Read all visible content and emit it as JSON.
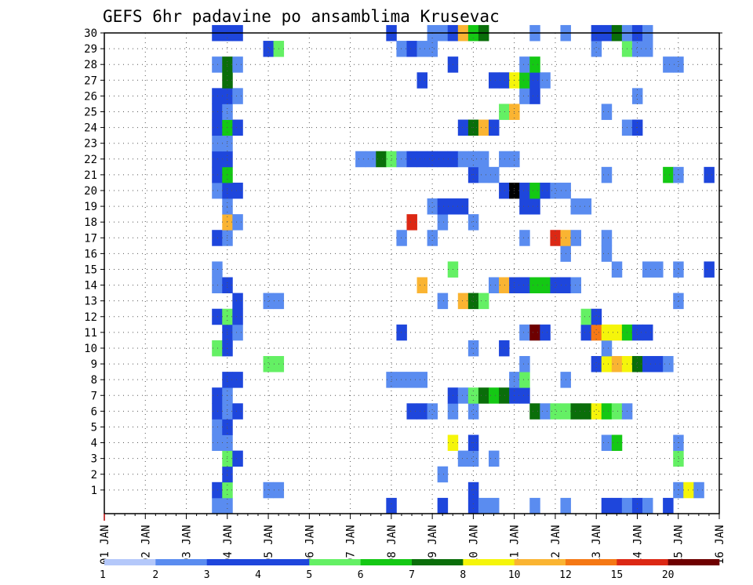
{
  "chart_data": {
    "type": "heatmap",
    "title": "GEFS 6hr padavine po ansamblima Krusevac",
    "xlabel": "",
    "ylabel": "",
    "grid": true,
    "legend_position": "bottom",
    "x_tick_labels": [
      "01 JAN",
      "02 JAN",
      "03 JAN",
      "04 JAN",
      "05 JAN",
      "06 JAN",
      "07 JAN",
      "08 JAN",
      "09 JAN",
      "10 JAN",
      "11 JAN",
      "12 JAN",
      "13 JAN",
      "14 JAN",
      "15 JAN",
      "16 JAN"
    ],
    "y_tick_labels": [
      "1",
      "2",
      "3",
      "4",
      "5",
      "6",
      "7",
      "8",
      "9",
      "10",
      "11",
      "12",
      "13",
      "14",
      "15",
      "16",
      "17",
      "18",
      "19",
      "20",
      "21",
      "22",
      "23",
      "24",
      "25",
      "26",
      "27",
      "28",
      "29",
      "30"
    ],
    "x_range_days": [
      1,
      16
    ],
    "y_range_members": [
      0,
      30
    ],
    "steps_per_day": 4,
    "legend": {
      "labels": [
        "1",
        "2",
        "3",
        "4",
        "5",
        "6",
        "7",
        "8",
        "10",
        "12",
        "15",
        "20"
      ],
      "colors": [
        "#b4c8fa",
        "#5a8cf0",
        "#1e46dc",
        "#1e46dc",
        "#64f064",
        "#14c814",
        "#0a6e0a",
        "#f5f50a",
        "#fab432",
        "#f57814",
        "#dc2814",
        "#6e0000"
      ]
    },
    "colors": {
      "background": "#ffffff",
      "axis": "#000000",
      "grid": "#555555",
      "tick_minor": "#b40000"
    },
    "cells": [
      [
        0,
        "3.75",
        1
      ],
      [
        0,
        "4.0",
        1
      ],
      [
        0,
        "8.0",
        2
      ],
      [
        0,
        "9.25",
        2
      ],
      [
        0,
        "10.0",
        2
      ],
      [
        0,
        "10.25",
        1
      ],
      [
        0,
        "10.5",
        1
      ],
      [
        0,
        "11.5",
        1
      ],
      [
        0,
        "12.25",
        1
      ],
      [
        0,
        "13.25",
        2
      ],
      [
        0,
        "13.5",
        3
      ],
      [
        0,
        "13.75",
        1
      ],
      [
        0,
        "14.0",
        2
      ],
      [
        0,
        "14.25",
        1
      ],
      [
        0,
        "14.75",
        2
      ],
      [
        1,
        "3.75",
        2
      ],
      [
        1,
        "4.0",
        4
      ],
      [
        1,
        "5.0",
        1
      ],
      [
        1,
        "5.25",
        1
      ],
      [
        1,
        "10.0",
        2
      ],
      [
        1,
        "15.0",
        1
      ],
      [
        1,
        "15.25",
        7
      ],
      [
        1,
        "15.5",
        1
      ],
      [
        2,
        "4.0",
        2
      ],
      [
        2,
        "9.25",
        1
      ],
      [
        3,
        "4.0",
        4
      ],
      [
        3,
        "4.25",
        2
      ],
      [
        3,
        "9.75",
        1
      ],
      [
        3,
        "10.0",
        1
      ],
      [
        3,
        "10.5",
        1
      ],
      [
        3,
        "15.0",
        4
      ],
      [
        4,
        "3.75",
        1
      ],
      [
        4,
        "4.0",
        1
      ],
      [
        4,
        "9.5",
        7
      ],
      [
        4,
        "10.0",
        3
      ],
      [
        4,
        "13.25",
        1
      ],
      [
        4,
        "13.5",
        5
      ],
      [
        4,
        "15.0",
        1
      ],
      [
        5,
        "3.75",
        1
      ],
      [
        5,
        "4.0",
        2
      ],
      [
        6,
        "3.75",
        2
      ],
      [
        6,
        "4.0",
        1
      ],
      [
        6,
        "4.25",
        2
      ],
      [
        6,
        "8.5",
        3
      ],
      [
        6,
        "8.75",
        3
      ],
      [
        6,
        "9.0",
        1
      ],
      [
        6,
        "9.5",
        1
      ],
      [
        6,
        "10.0",
        1
      ],
      [
        6,
        "11.5",
        6
      ],
      [
        6,
        "11.75",
        1
      ],
      [
        6,
        "12.0",
        4
      ],
      [
        6,
        "12.25",
        4
      ],
      [
        6,
        "12.5",
        6
      ],
      [
        6,
        "12.75",
        6
      ],
      [
        6,
        "13.0",
        7
      ],
      [
        6,
        "13.25",
        5
      ],
      [
        6,
        "13.5",
        4
      ],
      [
        6,
        "13.75",
        1
      ],
      [
        7,
        "3.75",
        2
      ],
      [
        7,
        "4.0",
        1
      ],
      [
        7,
        "9.5",
        2
      ],
      [
        7,
        "9.75",
        1
      ],
      [
        7,
        "10.0",
        4
      ],
      [
        7,
        "10.25",
        6
      ],
      [
        7,
        "10.5",
        5
      ],
      [
        7,
        "10.75",
        6
      ],
      [
        7,
        "11.0",
        3
      ],
      [
        7,
        "11.25",
        3
      ],
      [
        8,
        "4.0",
        3
      ],
      [
        8,
        "4.25",
        2
      ],
      [
        8,
        "8.0",
        1
      ],
      [
        8,
        "8.25",
        1
      ],
      [
        8,
        "8.5",
        1
      ],
      [
        8,
        "8.75",
        1
      ],
      [
        8,
        "11.0",
        1
      ],
      [
        8,
        "11.25",
        4
      ],
      [
        8,
        "12.25",
        1
      ],
      [
        9,
        "5.0",
        4
      ],
      [
        9,
        "5.25",
        4
      ],
      [
        9,
        "11.25",
        1
      ],
      [
        9,
        "13.0",
        3
      ],
      [
        9,
        "13.25",
        7
      ],
      [
        9,
        "13.5",
        8
      ],
      [
        9,
        "13.75",
        7
      ],
      [
        9,
        "14.0",
        6
      ],
      [
        9,
        "14.25",
        2
      ],
      [
        9,
        "14.5",
        2
      ],
      [
        9,
        "14.75",
        1
      ],
      [
        10,
        "3.75",
        4
      ],
      [
        10,
        "4.0",
        3
      ],
      [
        10,
        "10.0",
        1
      ],
      [
        10,
        "10.75",
        2
      ],
      [
        10,
        "13.25",
        1
      ],
      [
        11,
        "4.0",
        3
      ],
      [
        11,
        "4.25",
        1
      ],
      [
        11,
        "8.25",
        3
      ],
      [
        11,
        "11.25",
        1
      ],
      [
        11,
        "11.5",
        11
      ],
      [
        11,
        "11.75",
        3
      ],
      [
        11,
        "12.75",
        2
      ],
      [
        11,
        "13.0",
        9
      ],
      [
        11,
        "13.25",
        7
      ],
      [
        11,
        "13.5",
        7
      ],
      [
        11,
        "13.75",
        5
      ],
      [
        11,
        "14.0",
        3
      ],
      [
        11,
        "14.25",
        2
      ],
      [
        12,
        "3.75",
        2
      ],
      [
        12,
        "4.0",
        4
      ],
      [
        12,
        "4.25",
        2
      ],
      [
        12,
        "12.75",
        4
      ],
      [
        12,
        "13.0",
        2
      ],
      [
        13,
        "4.25",
        3
      ],
      [
        13,
        "5.0",
        1
      ],
      [
        13,
        "5.25",
        1
      ],
      [
        13,
        "9.25",
        1
      ],
      [
        13,
        "9.75",
        8
      ],
      [
        13,
        "10.0",
        6
      ],
      [
        13,
        "10.25",
        4
      ],
      [
        13,
        "15.0",
        1
      ],
      [
        14,
        "3.75",
        1
      ],
      [
        14,
        "4.0",
        3
      ],
      [
        14,
        "8.75",
        8
      ],
      [
        14,
        "10.5",
        1
      ],
      [
        14,
        "10.75",
        8
      ],
      [
        14,
        "11.0",
        3
      ],
      [
        14,
        "11.25",
        2
      ],
      [
        14,
        "11.5",
        5
      ],
      [
        14,
        "11.75",
        5
      ],
      [
        14,
        "12.0",
        2
      ],
      [
        14,
        "12.25",
        3
      ],
      [
        14,
        "12.5",
        1
      ],
      [
        15,
        "3.75",
        1
      ],
      [
        15,
        "9.5",
        4
      ],
      [
        15,
        "13.5",
        1
      ],
      [
        15,
        "14.25",
        1
      ],
      [
        15,
        "14.5",
        1
      ],
      [
        15,
        "15.0",
        1
      ],
      [
        15,
        "15.75",
        3
      ],
      [
        16,
        "12.25",
        1
      ],
      [
        16,
        "13.25",
        1
      ],
      [
        17,
        "3.75",
        2
      ],
      [
        17,
        "4.0",
        1
      ],
      [
        17,
        "8.25",
        1
      ],
      [
        17,
        "9.0",
        1
      ],
      [
        17,
        "11.25",
        1
      ],
      [
        17,
        "12.0",
        10
      ],
      [
        17,
        "12.25",
        8
      ],
      [
        17,
        "12.5",
        1
      ],
      [
        17,
        "13.25",
        1
      ],
      [
        18,
        "4.0",
        8
      ],
      [
        18,
        "4.25",
        1
      ],
      [
        18,
        "8.5",
        10
      ],
      [
        18,
        "9.25",
        1
      ],
      [
        18,
        "10.0",
        1
      ],
      [
        19,
        "4.0",
        1
      ],
      [
        19,
        "9.0",
        1
      ],
      [
        19,
        "9.25",
        2
      ],
      [
        19,
        "9.5",
        2
      ],
      [
        19,
        "9.75",
        2
      ],
      [
        19,
        "11.25",
        2
      ],
      [
        19,
        "11.5",
        3
      ],
      [
        19,
        "12.5",
        1
      ],
      [
        19,
        "12.75",
        1
      ],
      [
        20,
        "3.75",
        1
      ],
      [
        20,
        "4.0",
        3
      ],
      [
        20,
        "4.25",
        3
      ],
      [
        20,
        "10.75",
        2
      ],
      [
        20,
        "11.0",
        12
      ],
      [
        20,
        "11.25",
        3
      ],
      [
        20,
        "11.5",
        5
      ],
      [
        20,
        "11.75",
        2
      ],
      [
        20,
        "12.0",
        1
      ],
      [
        20,
        "12.25",
        1
      ],
      [
        21,
        "3.75",
        3
      ],
      [
        21,
        "4.0",
        5
      ],
      [
        21,
        "10.0",
        2
      ],
      [
        21,
        "10.25",
        1
      ],
      [
        21,
        "10.5",
        1
      ],
      [
        21,
        "13.25",
        1
      ],
      [
        21,
        "14.75",
        5
      ],
      [
        21,
        "15.0",
        1
      ],
      [
        21,
        "15.75",
        3
      ],
      [
        22,
        "3.75",
        2
      ],
      [
        22,
        "4.0",
        2
      ],
      [
        22,
        "7.25",
        1
      ],
      [
        22,
        "7.5",
        1
      ],
      [
        22,
        "7.75",
        6
      ],
      [
        22,
        "8.0",
        4
      ],
      [
        22,
        "8.25",
        1
      ],
      [
        22,
        "8.5",
        3
      ],
      [
        22,
        "8.75",
        3
      ],
      [
        22,
        "9.0",
        3
      ],
      [
        22,
        "9.25",
        2
      ],
      [
        22,
        "9.5",
        2
      ],
      [
        22,
        "9.75",
        1
      ],
      [
        22,
        "10.0",
        1
      ],
      [
        22,
        "10.25",
        1
      ],
      [
        22,
        "10.75",
        1
      ],
      [
        22,
        "11.0",
        1
      ],
      [
        23,
        "3.75",
        1
      ],
      [
        23,
        "4.0",
        1
      ],
      [
        24,
        "3.75",
        2
      ],
      [
        24,
        "4.0",
        5
      ],
      [
        24,
        "4.25",
        3
      ],
      [
        24,
        "9.75",
        2
      ],
      [
        24,
        "10.0",
        6
      ],
      [
        24,
        "10.25",
        8
      ],
      [
        24,
        "10.5",
        3
      ],
      [
        24,
        "13.75",
        1
      ],
      [
        24,
        "14.0",
        2
      ],
      [
        25,
        "3.75",
        3
      ],
      [
        25,
        "4.0",
        1
      ],
      [
        25,
        "10.75",
        4
      ],
      [
        25,
        "11.0",
        8
      ],
      [
        25,
        "13.25",
        1
      ],
      [
        26,
        "3.75",
        3
      ],
      [
        26,
        "4.0",
        2
      ],
      [
        26,
        "4.25",
        1
      ],
      [
        26,
        "11.25",
        1
      ],
      [
        26,
        "11.5",
        3
      ],
      [
        26,
        "14.0",
        1
      ],
      [
        27,
        "4.0",
        6
      ],
      [
        27,
        "8.75",
        3
      ],
      [
        27,
        "10.5",
        2
      ],
      [
        27,
        "10.75",
        3
      ],
      [
        27,
        "11.0",
        7
      ],
      [
        27,
        "11.25",
        5
      ],
      [
        27,
        "11.5",
        2
      ],
      [
        27,
        "11.75",
        1
      ],
      [
        28,
        "3.75",
        1
      ],
      [
        28,
        "4.0",
        6
      ],
      [
        28,
        "4.25",
        1
      ],
      [
        28,
        "9.5",
        2
      ],
      [
        28,
        "11.25",
        1
      ],
      [
        28,
        "11.5",
        5
      ],
      [
        28,
        "14.75",
        1
      ],
      [
        28,
        "15.0",
        1
      ],
      [
        29,
        "5.0",
        2
      ],
      [
        29,
        "5.25",
        4
      ],
      [
        29,
        "8.25",
        1
      ],
      [
        29,
        "8.5",
        2
      ],
      [
        29,
        "8.75",
        1
      ],
      [
        29,
        "9.0",
        1
      ],
      [
        29,
        "13.0",
        1
      ],
      [
        29,
        "13.75",
        4
      ],
      [
        29,
        "14.0",
        1
      ],
      [
        29,
        "14.25",
        1
      ],
      [
        30,
        "3.75",
        3
      ],
      [
        30,
        "4.0",
        3
      ],
      [
        30,
        "4.25",
        3
      ],
      [
        30,
        "8.0",
        2
      ],
      [
        30,
        "9.0",
        1
      ],
      [
        30,
        "9.25",
        1
      ],
      [
        30,
        "9.5",
        3
      ],
      [
        30,
        "9.75",
        8
      ],
      [
        30,
        "10.0",
        5
      ],
      [
        30,
        "10.25",
        6
      ],
      [
        30,
        "11.5",
        1
      ],
      [
        30,
        "12.25",
        1
      ],
      [
        30,
        "13.0",
        2
      ],
      [
        30,
        "13.25",
        2
      ],
      [
        30,
        "13.5",
        6
      ],
      [
        30,
        "13.75",
        1
      ],
      [
        30,
        "14.0",
        3
      ],
      [
        30,
        "14.25",
        1
      ]
    ]
  }
}
